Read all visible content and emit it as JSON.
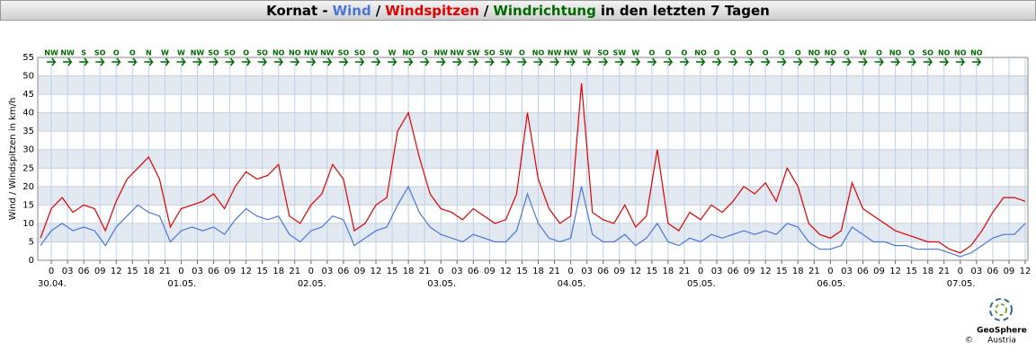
{
  "chart_data": {
    "type": "line",
    "title_prefix": "Kornat -",
    "title_separator": "/",
    "title_suffix": "in den letzten 7 Tagen",
    "ylabel": "Wind / Windspitzen in km/h",
    "ylim": [
      0,
      55
    ],
    "yticks": [
      0,
      5,
      10,
      15,
      20,
      25,
      30,
      35,
      40,
      45,
      50,
      55
    ],
    "xlim": [
      -2.5,
      180.5
    ],
    "xticks": [
      0,
      {
        "value": 3,
        "label": "03"
      },
      {
        "value": 6,
        "label": "06"
      },
      {
        "value": 9,
        "label": "09"
      },
      12,
      15,
      18,
      21,
      {
        "value": 24,
        "label": "0"
      },
      {
        "value": 27,
        "label": "03"
      },
      {
        "value": 30,
        "label": "06"
      },
      {
        "value": 33,
        "label": "09"
      },
      {
        "value": 36,
        "label": "12"
      },
      {
        "value": 39,
        "label": "15"
      },
      {
        "value": 42,
        "label": "18"
      },
      {
        "value": 45,
        "label": "21"
      },
      {
        "value": 48,
        "label": "0"
      },
      {
        "value": 51,
        "label": "03"
      },
      {
        "value": 54,
        "label": "06"
      },
      {
        "value": 57,
        "label": "09"
      },
      {
        "value": 60,
        "label": "12"
      },
      {
        "value": 63,
        "label": "15"
      },
      {
        "value": 66,
        "label": "18"
      },
      {
        "value": 69,
        "label": "21"
      },
      {
        "value": 72,
        "label": "0"
      },
      {
        "value": 75,
        "label": "03"
      },
      {
        "value": 78,
        "label": "06"
      },
      {
        "value": 81,
        "label": "09"
      },
      {
        "value": 84,
        "label": "12"
      },
      {
        "value": 87,
        "label": "15"
      },
      {
        "value": 90,
        "label": "18"
      },
      {
        "value": 93,
        "label": "21"
      },
      {
        "value": 96,
        "label": "0"
      },
      {
        "value": 99,
        "label": "03"
      },
      {
        "value": 102,
        "label": "06"
      },
      {
        "value": 105,
        "label": "09"
      },
      {
        "value": 108,
        "label": "12"
      },
      {
        "value": 111,
        "label": "15"
      },
      {
        "value": 114,
        "label": "18"
      },
      {
        "value": 117,
        "label": "21"
      },
      {
        "value": 120,
        "label": "0"
      },
      {
        "value": 123,
        "label": "03"
      },
      {
        "value": 126,
        "label": "06"
      },
      {
        "value": 129,
        "label": "09"
      },
      {
        "value": 132,
        "label": "12"
      },
      {
        "value": 135,
        "label": "15"
      },
      {
        "value": 138,
        "label": "18"
      },
      {
        "value": 141,
        "label": "21"
      },
      {
        "value": 144,
        "label": "0"
      },
      {
        "value": 147,
        "label": "03"
      },
      {
        "value": 150,
        "label": "06"
      },
      {
        "value": 153,
        "label": "09"
      },
      {
        "value": 156,
        "label": "12"
      },
      {
        "value": 159,
        "label": "15"
      },
      {
        "value": 162,
        "label": "18"
      },
      {
        "value": 165,
        "label": "21"
      },
      {
        "value": 168,
        "label": "0"
      },
      {
        "value": 171,
        "label": "03"
      },
      {
        "value": 174,
        "label": "06"
      },
      {
        "value": 177,
        "label": "09"
      },
      {
        "value": 180,
        "label": "12"
      }
    ],
    "date_labels": [
      {
        "value": 0,
        "label": "30.04."
      },
      {
        "value": 24,
        "label": "01.05."
      },
      {
        "value": 48,
        "label": "02.05."
      },
      {
        "value": 72,
        "label": "03.05."
      },
      {
        "value": 96,
        "label": "04.05."
      },
      {
        "value": 120,
        "label": "05.05."
      },
      {
        "value": 144,
        "label": "06.05."
      },
      {
        "value": 168,
        "label": "07.05."
      }
    ],
    "grid": true,
    "bands": true,
    "x": [
      -2,
      0,
      2,
      4,
      6,
      8,
      10,
      12,
      14,
      16,
      18,
      20,
      22,
      24,
      26,
      28,
      30,
      32,
      34,
      36,
      38,
      40,
      42,
      44,
      46,
      48,
      50,
      52,
      54,
      56,
      58,
      60,
      62,
      64,
      66,
      68,
      70,
      72,
      74,
      76,
      78,
      80,
      82,
      84,
      86,
      88,
      90,
      92,
      94,
      96,
      98,
      100,
      102,
      104,
      106,
      108,
      110,
      112,
      114,
      116,
      118,
      120,
      122,
      124,
      126,
      128,
      130,
      132,
      134,
      136,
      138,
      140,
      142,
      144,
      146,
      148,
      150,
      152,
      154,
      156,
      158,
      160,
      162,
      164,
      166,
      168,
      170,
      172,
      174,
      176,
      178,
      180
    ],
    "series": [
      {
        "name": "Wind",
        "color": "#4a76d8",
        "values": [
          4,
          8,
          10,
          8,
          9,
          8,
          4,
          9,
          12,
          15,
          13,
          12,
          5,
          8,
          9,
          8,
          9,
          7,
          11,
          14,
          12,
          11,
          12,
          7,
          5,
          8,
          9,
          12,
          11,
          4,
          6,
          8,
          9,
          15,
          20,
          13,
          9,
          7,
          6,
          5,
          7,
          6,
          5,
          5,
          8,
          18,
          10,
          6,
          5,
          6,
          20,
          7,
          5,
          5,
          7,
          4,
          6,
          10,
          5,
          4,
          6,
          5,
          7,
          6,
          7,
          8,
          7,
          8,
          7,
          10,
          9,
          5,
          3,
          3,
          4,
          9,
          7,
          5,
          5,
          4,
          4,
          3,
          3,
          3,
          2,
          1,
          2,
          4,
          6,
          7,
          7,
          10
        ]
      },
      {
        "name": "Windspitzen",
        "color": "#e00000",
        "values": [
          6,
          14,
          17,
          13,
          15,
          14,
          8,
          16,
          22,
          25,
          28,
          22,
          9,
          14,
          15,
          16,
          18,
          14,
          20,
          24,
          22,
          23,
          26,
          12,
          10,
          15,
          18,
          26,
          22,
          8,
          10,
          15,
          17,
          35,
          40,
          28,
          18,
          14,
          13,
          11,
          14,
          12,
          10,
          11,
          18,
          40,
          22,
          14,
          10,
          12,
          48,
          13,
          11,
          10,
          15,
          9,
          12,
          30,
          10,
          8,
          13,
          11,
          15,
          13,
          16,
          20,
          18,
          21,
          16,
          25,
          20,
          10,
          7,
          6,
          8,
          21,
          14,
          12,
          10,
          8,
          7,
          6,
          5,
          5,
          3,
          2,
          4,
          8,
          13,
          17,
          17,
          16
        ]
      }
    ],
    "direction": {
      "name": "Windrichtung",
      "color": "#006a00",
      "x": [
        0,
        3,
        6,
        9,
        12,
        15,
        18,
        21,
        24,
        27,
        30,
        33,
        36,
        39,
        42,
        45,
        48,
        51,
        54,
        57,
        60,
        63,
        66,
        69,
        72,
        75,
        78,
        81,
        84,
        87,
        90,
        93,
        96,
        99,
        102,
        105,
        108,
        111,
        114,
        117,
        120,
        123,
        126,
        129,
        132,
        135,
        138,
        141,
        144,
        147,
        150,
        153,
        156,
        159,
        162,
        165,
        168,
        171
      ],
      "labels": [
        "NW",
        "NW",
        "S",
        "SO",
        "O",
        "O",
        "N",
        "W",
        "W",
        "NW",
        "SO",
        "SO",
        "O",
        "SO",
        "NO",
        "NO",
        "NW",
        "NW",
        "SO",
        "SO",
        "O",
        "W",
        "NO",
        "O",
        "NW",
        "NW",
        "SW",
        "SO",
        "SW",
        "O",
        "NO",
        "NW",
        "NW",
        "W",
        "SO",
        "SW",
        "W",
        "O",
        "O",
        "O",
        "NO",
        "O",
        "O",
        "O",
        "O",
        "O",
        "O",
        "NO",
        "NO",
        "O",
        "W",
        "O",
        "NO",
        "O",
        "SO",
        "NO",
        "NO",
        "NO"
      ]
    },
    "footer": {
      "brand": "GeoSphere",
      "copyright": "©",
      "country": "Austria"
    }
  }
}
